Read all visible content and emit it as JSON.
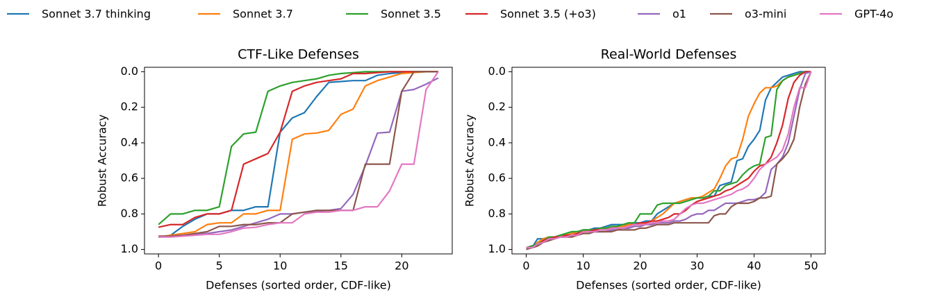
{
  "chart_data": [
    {
      "type": "line",
      "title": "CTF-Like Defenses",
      "xlabel": "Defenses (sorted order, CDF-like)",
      "ylabel": "Robust Accuracy",
      "x": [
        0,
        1,
        2,
        3,
        4,
        5,
        6,
        7,
        8,
        9,
        10,
        11,
        12,
        13,
        14,
        15,
        16,
        17,
        18,
        19,
        20,
        21,
        22,
        23
      ],
      "xlim": [
        -1.15,
        24.15
      ],
      "xticks": [
        0,
        5,
        10,
        15,
        20
      ],
      "ylim": [
        1.025,
        -0.025
      ],
      "yticks": [
        {
          "value": 0,
          "label": "0.0"
        },
        0.2,
        0.4,
        0.6,
        0.8,
        {
          "value": 1,
          "label": "1.0"
        }
      ],
      "series": [
        {
          "name": "Sonnet 3.7 thinking",
          "color": "#1f77b4",
          "values": [
            0.93,
            0.92,
            0.87,
            0.83,
            0.8,
            0.8,
            0.78,
            0.78,
            0.76,
            0.76,
            0.34,
            0.26,
            0.23,
            0.14,
            0.06,
            0.055,
            0.05,
            0.05,
            0.02,
            0.01,
            0.005,
            0,
            0,
            0
          ]
        },
        {
          "name": "Sonnet 3.7",
          "color": "#ff7f0e",
          "values": [
            0.93,
            0.92,
            0.91,
            0.9,
            0.86,
            0.85,
            0.85,
            0.8,
            0.8,
            0.78,
            0.78,
            0.38,
            0.35,
            0.345,
            0.33,
            0.24,
            0.21,
            0.08,
            0.05,
            0.03,
            0.01,
            0.005,
            0,
            0
          ]
        },
        {
          "name": "Sonnet 3.5",
          "color": "#2ca02c",
          "values": [
            0.86,
            0.8,
            0.8,
            0.78,
            0.78,
            0.76,
            0.42,
            0.35,
            0.34,
            0.11,
            0.08,
            0.06,
            0.05,
            0.04,
            0.02,
            0.01,
            0.005,
            0,
            0,
            0,
            0,
            0,
            0,
            0
          ]
        },
        {
          "name": "Sonnet 3.5 (+o3)",
          "color": "#d62728",
          "values": [
            0.875,
            0.86,
            0.86,
            0.82,
            0.8,
            0.8,
            0.78,
            0.52,
            0.49,
            0.46,
            0.34,
            0.11,
            0.08,
            0.06,
            0.05,
            0.04,
            0.01,
            0.01,
            0.005,
            0,
            0,
            0,
            0,
            0
          ]
        },
        {
          "name": "o1",
          "color": "#9467bd",
          "values": [
            0.93,
            0.925,
            0.92,
            0.915,
            0.91,
            0.9,
            0.89,
            0.87,
            0.85,
            0.83,
            0.8,
            0.8,
            0.79,
            0.785,
            0.78,
            0.77,
            0.69,
            0.53,
            0.345,
            0.34,
            0.11,
            0.1,
            0.07,
            0.035
          ]
        },
        {
          "name": "o3-mini",
          "color": "#8c564b",
          "values": [
            0.925,
            0.925,
            0.92,
            0.91,
            0.9,
            0.87,
            0.87,
            0.86,
            0.86,
            0.85,
            0.85,
            0.8,
            0.79,
            0.78,
            0.78,
            0.78,
            0.78,
            0.52,
            0.52,
            0.52,
            0.11,
            0,
            0,
            0
          ]
        },
        {
          "name": "GPT-4o",
          "color": "#e377c2",
          "values": [
            0.93,
            0.93,
            0.925,
            0.92,
            0.915,
            0.915,
            0.9,
            0.88,
            0.875,
            0.86,
            0.85,
            0.85,
            0.8,
            0.79,
            0.79,
            0.78,
            0.78,
            0.76,
            0.76,
            0.67,
            0.52,
            0.52,
            0.1,
            0
          ]
        }
      ]
    },
    {
      "type": "line",
      "title": "Real-World Defenses",
      "xlabel": "Defenses (sorted order, CDF-like)",
      "ylabel": "Robust Accuracy",
      "x": [
        0,
        1,
        2,
        3,
        4,
        5,
        6,
        7,
        8,
        9,
        10,
        11,
        12,
        13,
        14,
        15,
        16,
        17,
        18,
        19,
        20,
        21,
        22,
        23,
        24,
        25,
        26,
        27,
        28,
        29,
        30,
        31,
        32,
        33,
        34,
        35,
        36,
        37,
        38,
        39,
        40,
        41,
        42,
        43,
        44,
        45,
        46,
        47,
        48,
        49,
        50
      ],
      "xlim": [
        -2.5,
        52.5
      ],
      "xticks": [
        0,
        10,
        20,
        30,
        40,
        50
      ],
      "ylim": [
        1.025,
        -0.025
      ],
      "yticks": [
        {
          "value": 0,
          "label": "0.0"
        },
        0.2,
        0.4,
        0.6,
        0.8,
        {
          "value": 1,
          "label": "1.0"
        }
      ],
      "series": [
        {
          "color": "#1f77b4",
          "values": [
            0.99,
            0.99,
            0.94,
            0.94,
            0.93,
            0.93,
            0.92,
            0.91,
            0.9,
            0.9,
            0.89,
            0.89,
            0.88,
            0.88,
            0.87,
            0.86,
            0.86,
            0.86,
            0.86,
            0.85,
            0.85,
            0.84,
            0.84,
            0.8,
            0.78,
            0.76,
            0.74,
            0.73,
            0.72,
            0.71,
            0.71,
            0.71,
            0.7,
            0.7,
            0.64,
            0.63,
            0.62,
            0.5,
            0.49,
            0.42,
            0.38,
            0.33,
            0.16,
            0.09,
            0.06,
            0.03,
            0.02,
            0.01,
            0,
            0,
            0
          ]
        },
        {
          "color": "#ff7f0e",
          "values": [
            0.99,
            0.99,
            0.96,
            0.94,
            0.93,
            0.93,
            0.92,
            0.92,
            0.91,
            0.9,
            0.9,
            0.89,
            0.89,
            0.88,
            0.88,
            0.88,
            0.87,
            0.87,
            0.86,
            0.86,
            0.86,
            0.85,
            0.84,
            0.82,
            0.8,
            0.77,
            0.74,
            0.73,
            0.72,
            0.71,
            0.71,
            0.7,
            0.68,
            0.66,
            0.6,
            0.53,
            0.49,
            0.48,
            0.38,
            0.25,
            0.18,
            0.12,
            0.09,
            0.09,
            0.08,
            0.05,
            0.03,
            0.02,
            0.01,
            0,
            0
          ]
        },
        {
          "color": "#2ca02c",
          "values": [
            0.99,
            0.98,
            0.97,
            0.95,
            0.93,
            0.93,
            0.92,
            0.91,
            0.9,
            0.9,
            0.89,
            0.89,
            0.89,
            0.88,
            0.88,
            0.87,
            0.87,
            0.86,
            0.85,
            0.85,
            0.8,
            0.8,
            0.8,
            0.75,
            0.74,
            0.74,
            0.74,
            0.74,
            0.73,
            0.72,
            0.71,
            0.71,
            0.7,
            0.67,
            0.67,
            0.64,
            0.63,
            0.62,
            0.58,
            0.55,
            0.53,
            0.52,
            0.37,
            0.36,
            0.1,
            0.05,
            0.03,
            0.02,
            0.01,
            0,
            0
          ]
        },
        {
          "color": "#d62728",
          "values": [
            0.99,
            0.99,
            0.98,
            0.95,
            0.94,
            0.93,
            0.93,
            0.92,
            0.92,
            0.91,
            0.9,
            0.9,
            0.89,
            0.89,
            0.89,
            0.88,
            0.88,
            0.88,
            0.87,
            0.86,
            0.85,
            0.85,
            0.84,
            0.84,
            0.83,
            0.82,
            0.8,
            0.8,
            0.78,
            0.75,
            0.73,
            0.72,
            0.71,
            0.7,
            0.69,
            0.67,
            0.66,
            0.64,
            0.62,
            0.6,
            0.56,
            0.53,
            0.52,
            0.48,
            0.4,
            0.3,
            0.15,
            0.06,
            0.02,
            0,
            0
          ]
        },
        {
          "color": "#9467bd",
          "values": [
            0.99,
            0.99,
            0.98,
            0.96,
            0.94,
            0.94,
            0.93,
            0.93,
            0.92,
            0.92,
            0.91,
            0.91,
            0.9,
            0.9,
            0.9,
            0.89,
            0.89,
            0.88,
            0.88,
            0.87,
            0.87,
            0.86,
            0.86,
            0.85,
            0.85,
            0.85,
            0.84,
            0.84,
            0.83,
            0.81,
            0.8,
            0.8,
            0.78,
            0.78,
            0.76,
            0.74,
            0.74,
            0.74,
            0.73,
            0.72,
            0.72,
            0.71,
            0.68,
            0.55,
            0.52,
            0.48,
            0.4,
            0.25,
            0.1,
            0.01,
            0
          ]
        },
        {
          "color": "#8c564b",
          "values": [
            1,
            0.99,
            0.98,
            0.96,
            0.95,
            0.94,
            0.93,
            0.93,
            0.93,
            0.92,
            0.91,
            0.91,
            0.9,
            0.9,
            0.9,
            0.9,
            0.89,
            0.89,
            0.89,
            0.89,
            0.88,
            0.88,
            0.87,
            0.86,
            0.86,
            0.86,
            0.85,
            0.85,
            0.85,
            0.85,
            0.85,
            0.85,
            0.85,
            0.81,
            0.8,
            0.8,
            0.76,
            0.74,
            0.74,
            0.74,
            0.73,
            0.71,
            0.71,
            0.7,
            0.52,
            0.49,
            0.45,
            0.38,
            0.2,
            0.07,
            0
          ]
        },
        {
          "color": "#e377c2",
          "values": [
            0.99,
            0.99,
            0.97,
            0.96,
            0.94,
            0.94,
            0.93,
            0.93,
            0.92,
            0.92,
            0.9,
            0.9,
            0.9,
            0.89,
            0.89,
            0.88,
            0.88,
            0.88,
            0.87,
            0.86,
            0.86,
            0.86,
            0.85,
            0.85,
            0.84,
            0.84,
            0.83,
            0.8,
            0.77,
            0.75,
            0.74,
            0.74,
            0.73,
            0.72,
            0.71,
            0.7,
            0.69,
            0.67,
            0.66,
            0.64,
            0.6,
            0.55,
            0.52,
            0.5,
            0.48,
            0.44,
            0.35,
            0.2,
            0.09,
            0.09,
            0
          ]
        }
      ]
    }
  ]
}
